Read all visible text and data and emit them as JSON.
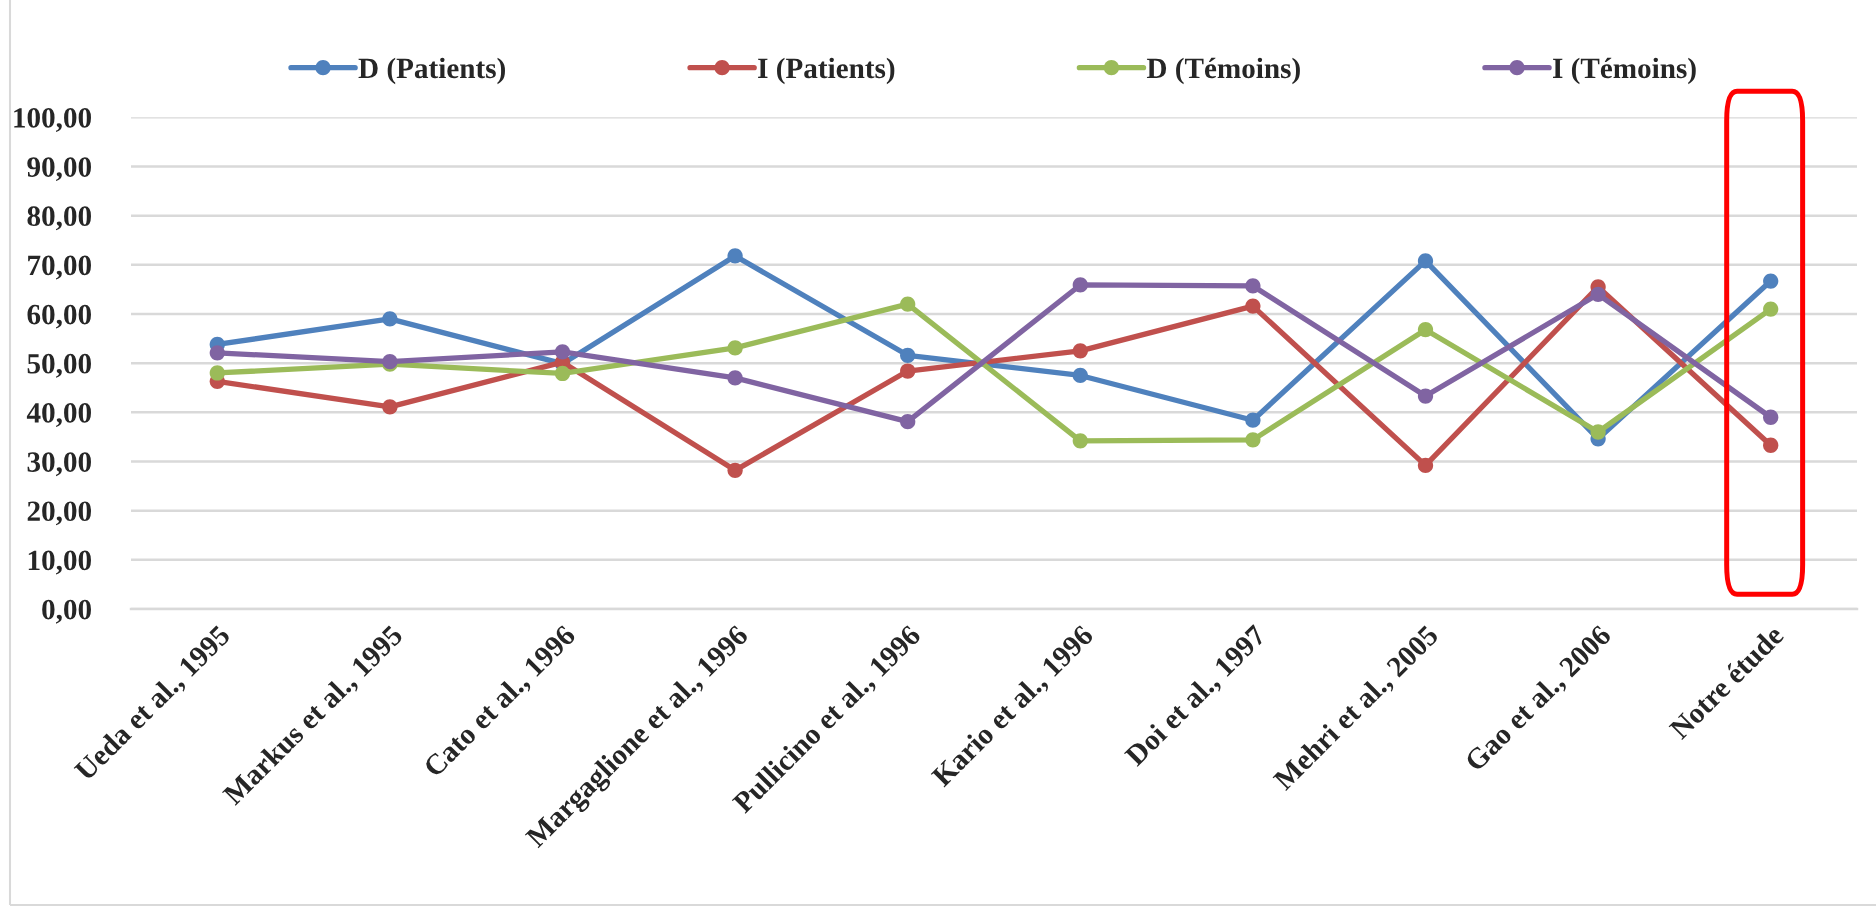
{
  "chart_data": {
    "type": "line",
    "categories": [
      "Ueda et al., 1995",
      "Markus et al., 1995",
      "Cato et al., 1996",
      "Margaglione et al., 1996",
      "Pullicino et al., 1996",
      "Kario et al., 1996",
      "Doi et al., 1997",
      "Mehri et al., 2005",
      "Gao et al., 2006",
      "Notre étude"
    ],
    "series": [
      {
        "name": "D (Patients)",
        "color": "#4f81bd",
        "values": [
          53.8,
          59.0,
          49.9,
          71.8,
          51.6,
          47.5,
          38.4,
          70.8,
          34.6,
          66.7
        ]
      },
      {
        "name": "I (Patients)",
        "color": "#c0504d",
        "values": [
          46.3,
          41.1,
          50.2,
          28.2,
          48.4,
          52.5,
          61.6,
          29.2,
          65.5,
          33.3
        ]
      },
      {
        "name": "D (Témoins)",
        "color": "#9bbb59",
        "values": [
          48.0,
          49.8,
          47.9,
          53.1,
          62.0,
          34.2,
          34.4,
          56.8,
          36.0,
          61.0
        ]
      },
      {
        "name": "I (Témoins)",
        "color": "#8064a2",
        "values": [
          52.1,
          50.3,
          52.3,
          47.0,
          38.1,
          65.9,
          65.7,
          43.3,
          64.0,
          39.0
        ]
      }
    ],
    "ylim": [
      0,
      100
    ],
    "yticks": [
      {
        "value": 0,
        "label": "0,00"
      },
      {
        "value": 10,
        "label": "10,00"
      },
      {
        "value": 20,
        "label": "20,00"
      },
      {
        "value": 30,
        "label": "30,00"
      },
      {
        "value": 40,
        "label": "40,00"
      },
      {
        "value": 50,
        "label": "50,00"
      },
      {
        "value": 60,
        "label": "60,00"
      },
      {
        "value": 70,
        "label": "70,00"
      },
      {
        "value": 80,
        "label": "80,00"
      },
      {
        "value": 90,
        "label": "90,00"
      },
      {
        "value": 100,
        "label": "100,00"
      }
    ],
    "grid": "y",
    "legend": "top",
    "marker": "circle",
    "line_style": "solid"
  }
}
